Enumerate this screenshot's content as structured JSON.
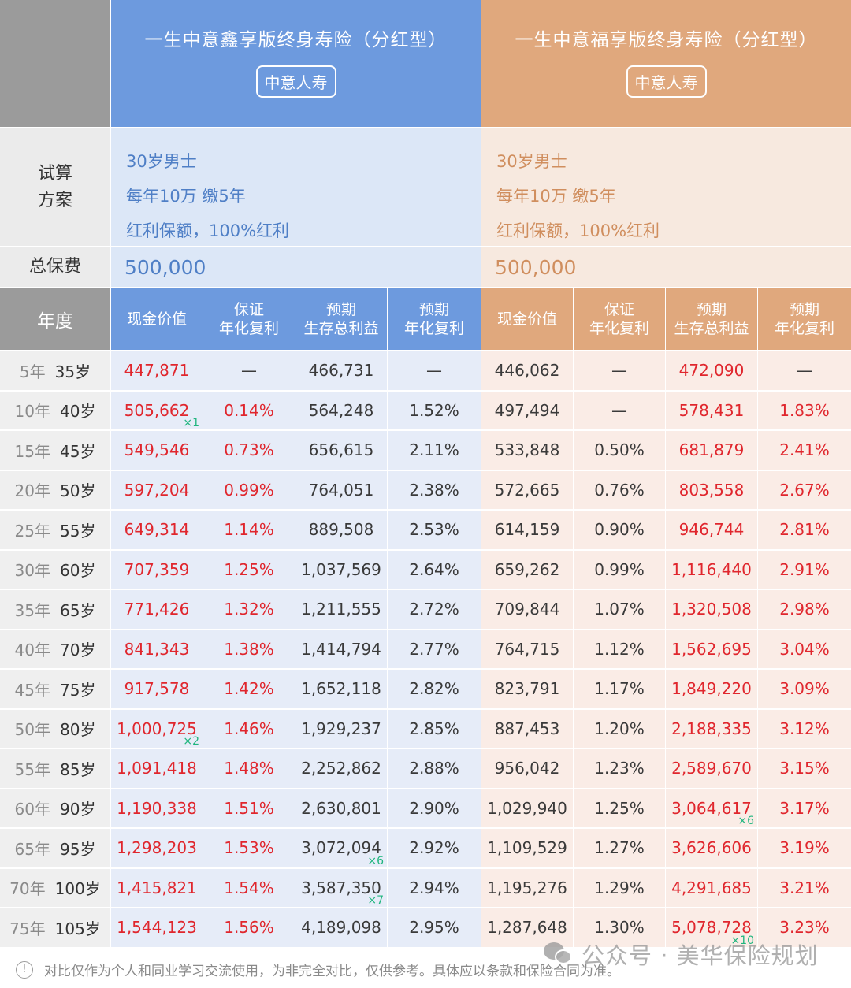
{
  "header": {
    "products": [
      {
        "title": "一生中意鑫享版终身寿险（分红型）",
        "company": "中意人寿",
        "theme": "#6d9ade"
      },
      {
        "title": "一生中意福享版终身寿险（分红型）",
        "company": "中意人寿",
        "theme": "#e0a87d"
      }
    ]
  },
  "plan": {
    "label_line1": "试算",
    "label_line2": "方案",
    "products": [
      {
        "line1": "30岁男士",
        "line2": "每年10万 缴5年",
        "line3": "红利保额，100%红利"
      },
      {
        "line1": "30岁男士",
        "line2": "每年10万 缴5年",
        "line3": "红利保额，100%红利"
      }
    ]
  },
  "premium": {
    "label": "总保费",
    "values": [
      "500,000",
      "500,000"
    ]
  },
  "columns": {
    "year_label": "年度",
    "headers": [
      {
        "line1": "现金价值",
        "line2": ""
      },
      {
        "line1": "保证",
        "line2": "年化复利"
      },
      {
        "line1": "预期",
        "line2": "生存总利益"
      },
      {
        "line1": "预期",
        "line2": "年化复利"
      },
      {
        "line1": "现金价值",
        "line2": ""
      },
      {
        "line1": "保证",
        "line2": "年化复利"
      },
      {
        "line1": "预期",
        "line2": "生存总利益"
      },
      {
        "line1": "预期",
        "line2": "年化复利"
      }
    ]
  },
  "rows": [
    {
      "years": "5年",
      "age": "35岁",
      "a_cv": "447,871",
      "a_gr": "—",
      "a_tb": "466,731",
      "a_er": "—",
      "b_cv": "446,062",
      "b_gr": "—",
      "b_tb": "472,090",
      "b_er": "—"
    },
    {
      "years": "10年",
      "age": "40岁",
      "a_cv": "505,662",
      "a_cv_mult": "×1",
      "a_gr": "0.14%",
      "a_tb": "564,248",
      "a_er": "1.52%",
      "b_cv": "497,494",
      "b_gr": "—",
      "b_tb": "578,431",
      "b_er": "1.83%"
    },
    {
      "years": "15年",
      "age": "45岁",
      "a_cv": "549,546",
      "a_gr": "0.73%",
      "a_tb": "656,615",
      "a_er": "2.11%",
      "b_cv": "533,848",
      "b_gr": "0.50%",
      "b_tb": "681,879",
      "b_er": "2.41%"
    },
    {
      "years": "20年",
      "age": "50岁",
      "a_cv": "597,204",
      "a_gr": "0.99%",
      "a_tb": "764,051",
      "a_er": "2.38%",
      "b_cv": "572,665",
      "b_gr": "0.76%",
      "b_tb": "803,558",
      "b_er": "2.67%"
    },
    {
      "years": "25年",
      "age": "55岁",
      "a_cv": "649,314",
      "a_gr": "1.14%",
      "a_tb": "889,508",
      "a_er": "2.53%",
      "b_cv": "614,159",
      "b_gr": "0.90%",
      "b_tb": "946,744",
      "b_er": "2.81%"
    },
    {
      "years": "30年",
      "age": "60岁",
      "a_cv": "707,359",
      "a_gr": "1.25%",
      "a_tb": "1,037,569",
      "a_er": "2.64%",
      "b_cv": "659,262",
      "b_gr": "0.99%",
      "b_tb": "1,116,440",
      "b_er": "2.91%"
    },
    {
      "years": "35年",
      "age": "65岁",
      "a_cv": "771,426",
      "a_gr": "1.32%",
      "a_tb": "1,211,555",
      "a_er": "2.72%",
      "b_cv": "709,844",
      "b_gr": "1.07%",
      "b_tb": "1,320,508",
      "b_er": "2.98%"
    },
    {
      "years": "40年",
      "age": "70岁",
      "a_cv": "841,343",
      "a_gr": "1.38%",
      "a_tb": "1,414,794",
      "a_er": "2.77%",
      "b_cv": "764,715",
      "b_gr": "1.12%",
      "b_tb": "1,562,695",
      "b_er": "3.04%"
    },
    {
      "years": "45年",
      "age": "75岁",
      "a_cv": "917,578",
      "a_gr": "1.42%",
      "a_tb": "1,652,118",
      "a_er": "2.82%",
      "b_cv": "823,791",
      "b_gr": "1.17%",
      "b_tb": "1,849,220",
      "b_er": "3.09%"
    },
    {
      "years": "50年",
      "age": "80岁",
      "a_cv": "1,000,725",
      "a_cv_mult": "×2",
      "a_gr": "1.46%",
      "a_tb": "1,929,237",
      "a_er": "2.85%",
      "b_cv": "887,453",
      "b_gr": "1.20%",
      "b_tb": "2,188,335",
      "b_er": "3.12%"
    },
    {
      "years": "55年",
      "age": "85岁",
      "a_cv": "1,091,418",
      "a_gr": "1.48%",
      "a_tb": "2,252,862",
      "a_er": "2.88%",
      "b_cv": "956,042",
      "b_gr": "1.23%",
      "b_tb": "2,589,670",
      "b_er": "3.15%"
    },
    {
      "years": "60年",
      "age": "90岁",
      "a_cv": "1,190,338",
      "a_gr": "1.51%",
      "a_tb": "2,630,801",
      "a_er": "2.90%",
      "b_cv": "1,029,940",
      "b_gr": "1.25%",
      "b_tb": "3,064,617",
      "b_tb_mult": "×6",
      "b_er": "3.17%"
    },
    {
      "years": "65年",
      "age": "95岁",
      "a_cv": "1,298,203",
      "a_gr": "1.53%",
      "a_tb": "3,072,094",
      "a_tb_mult": "×6",
      "a_er": "2.92%",
      "b_cv": "1,109,529",
      "b_gr": "1.27%",
      "b_tb": "3,626,606",
      "b_er": "3.19%"
    },
    {
      "years": "70年",
      "age": "100岁",
      "a_cv": "1,415,821",
      "a_gr": "1.54%",
      "a_tb": "3,587,350",
      "a_tb_mult": "×7",
      "a_er": "2.94%",
      "b_cv": "1,195,276",
      "b_gr": "1.29%",
      "b_tb": "4,291,685",
      "b_er": "3.21%"
    },
    {
      "years": "75年",
      "age": "105岁",
      "a_cv": "1,544,123",
      "a_gr": "1.56%",
      "a_tb": "4,189,098",
      "a_er": "2.95%",
      "b_cv": "1,287,648",
      "b_gr": "1.30%",
      "b_tb": "5,078,728",
      "b_tb_mult": "×10",
      "b_er": "3.23%"
    }
  ],
  "footer": {
    "note": "对比仅作为个人和同业学习交流使用，为非完全对比，仅供参考。具体应以条款和保险合同为准。",
    "info_icon": "!",
    "watermark": "公众号 · 美华保险规划"
  },
  "colors": {
    "blue_header": "#6d9ade",
    "orange_header": "#e0a87d",
    "highlight_red": "#e0262d",
    "multiplier_green": "#1fb57e"
  }
}
